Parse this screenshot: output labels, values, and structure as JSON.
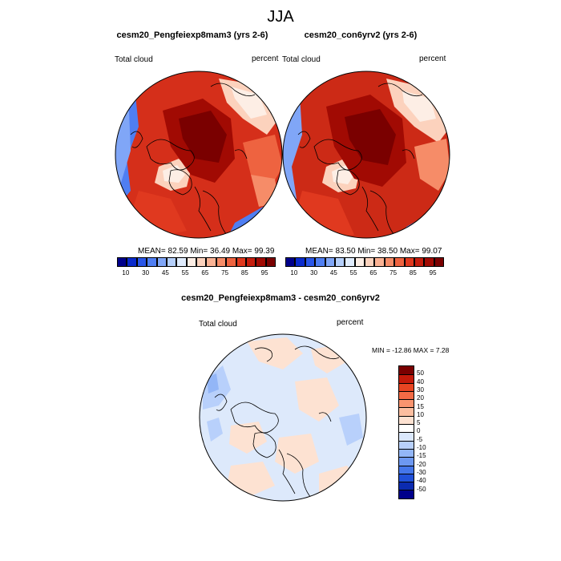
{
  "title": "JJA",
  "panel_a": {
    "title": "cesm20_Pengfeiexp8mam3 (yrs 2-6)",
    "left_label": "Total cloud",
    "right_label": "percent",
    "stats": "MEAN=  82.59  Min=  36.49  Max=  99.39"
  },
  "panel_b": {
    "title": "cesm20_con6yrv2 (yrs 2-6)",
    "left_label": "Total cloud",
    "right_label": "percent",
    "stats": "MEAN=  83.50  Min=  38.50  Max=  99.07"
  },
  "panel_c": {
    "title": "cesm20_Pengfeiexp8mam3 - cesm20_con6yrv2",
    "left_label": "Total cloud",
    "right_label": "percent",
    "stats": "MIN = -12.86 MAX =   7.28"
  },
  "colorbar_main": {
    "colors": [
      "#00008b",
      "#0b2bcc",
      "#2a56e8",
      "#4f7ef2",
      "#80a6f7",
      "#b5cffb",
      "#e0ecfd",
      "#fdeee5",
      "#fcd2bd",
      "#fab294",
      "#f68c68",
      "#ee6340",
      "#e0391f",
      "#c51d0e",
      "#a10a03",
      "#7a0000"
    ],
    "labels": [
      "10",
      "30",
      "45",
      "55",
      "65",
      "75",
      "85",
      "95"
    ]
  },
  "colorbar_diff": {
    "colors": [
      "#7a0000",
      "#c41a0a",
      "#e84522",
      "#f46b45",
      "#f9946f",
      "#fcbea0",
      "#fde2d2",
      "#ffffff",
      "#dbe8fd",
      "#b8d0fb",
      "#93b6f7",
      "#6d98f1",
      "#4476ea",
      "#2050d8",
      "#0b2bb0",
      "#00008b"
    ],
    "labels": [
      "50",
      "40",
      "30",
      "20",
      "15",
      "10",
      "5",
      "0",
      "-5",
      "-10",
      "-15",
      "-20",
      "-30",
      "-40",
      "-50"
    ]
  },
  "colors": {
    "ocean_red_a": "#d52f1a",
    "ocean_red_b": "#cc2a16",
    "dark_core": "#9b0a03",
    "diff_base": "#dde9fb"
  }
}
